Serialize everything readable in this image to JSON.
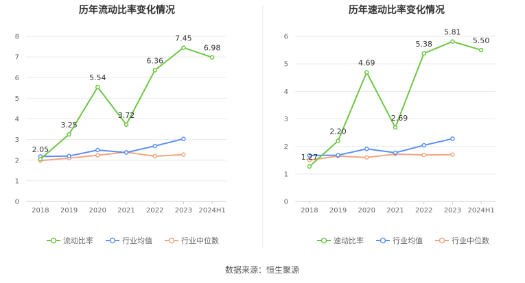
{
  "source_label": "数据来源：恒生聚源",
  "colors": {
    "primary": "#6cc644",
    "average": "#5b8ff9",
    "median": "#f4a57d"
  },
  "chart_data": [
    {
      "type": "line",
      "title": "历年流动比率变化情况",
      "categories": [
        "2018",
        "2019",
        "2020",
        "2021",
        "2022",
        "2023",
        "2024H1"
      ],
      "ylim": [
        0,
        8
      ],
      "yticks": [
        0,
        1,
        2,
        3,
        4,
        5,
        6,
        7,
        8
      ],
      "grid": true,
      "legend_position": "bottom",
      "series": [
        {
          "name": "流动比率",
          "key": "primary",
          "values": [
            2.05,
            3.25,
            5.54,
            3.72,
            6.36,
            7.45,
            6.98
          ],
          "labels": [
            "2.05",
            "3.25",
            "5.54",
            "3.72",
            "6.36",
            "7.45",
            "6.98"
          ]
        },
        {
          "name": "行业均值",
          "key": "average",
          "values": [
            2.18,
            2.2,
            2.49,
            2.37,
            2.69,
            3.03,
            null
          ]
        },
        {
          "name": "行业中位数",
          "key": "median",
          "values": [
            1.98,
            2.1,
            2.24,
            2.39,
            2.19,
            2.27,
            null
          ]
        }
      ]
    },
    {
      "type": "line",
      "title": "历年速动比率变化情况",
      "categories": [
        "2018",
        "2019",
        "2020",
        "2021",
        "2022",
        "2023",
        "2024H1"
      ],
      "ylim": [
        0,
        6
      ],
      "yticks": [
        0,
        1,
        2,
        3,
        4,
        5,
        6
      ],
      "grid": true,
      "legend_position": "bottom",
      "series": [
        {
          "name": "速动比率",
          "key": "primary",
          "values": [
            1.27,
            2.2,
            4.69,
            2.69,
            5.38,
            5.81,
            5.5
          ],
          "labels": [
            "1.27",
            "2.20",
            "4.69",
            "2.69",
            "5.38",
            "5.81",
            "5.50"
          ]
        },
        {
          "name": "行业均值",
          "key": "average",
          "values": [
            1.67,
            1.68,
            1.91,
            1.77,
            2.04,
            2.28,
            null
          ]
        },
        {
          "name": "行业中位数",
          "key": "median",
          "values": [
            1.5,
            1.65,
            1.6,
            1.72,
            1.69,
            1.7,
            null
          ]
        }
      ]
    }
  ]
}
